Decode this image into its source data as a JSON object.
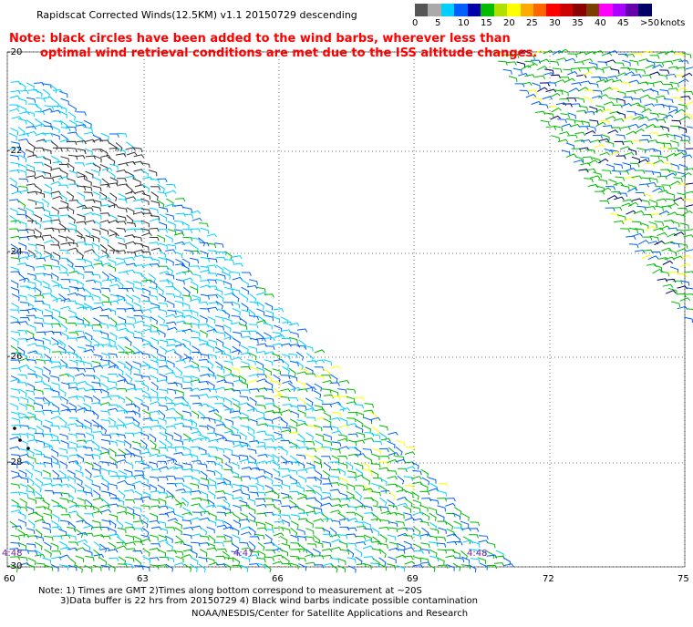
{
  "title": "Rapidscat Corrected Winds(12.5KM) v1.1 20150729 descending",
  "note_line1": "Note: black circles have been added to the wind barbs, wherever less than",
  "note_line2": "optimal wind retrieval conditions are met due to the ISS altitude changes.",
  "legend": {
    "unit": "knots",
    "labels": [
      "0",
      "5",
      "10",
      "15",
      "20",
      "25",
      "30",
      "35",
      "40",
      "45",
      ">50"
    ],
    "colors": [
      "#555555",
      "#aaaaaa",
      "#00cfff",
      "#0060ff",
      "#0000aa",
      "#00bb00",
      "#b0e000",
      "#ffff00",
      "#ffaa00",
      "#ff6600",
      "#ff0000",
      "#cc0000",
      "#8b0000",
      "#7a3f00",
      "#ff00ff",
      "#aa00ff",
      "#6600aa",
      "#000066"
    ]
  },
  "map": {
    "lat_labels": [
      "-20",
      "-22",
      "-24",
      "-26",
      "-28",
      "-30"
    ],
    "lon_labels": [
      "60",
      "63",
      "66",
      "69",
      "72",
      "75"
    ],
    "time_labels": [
      "4:48",
      "4:47",
      "4:48"
    ],
    "swaths": [
      {
        "name": "west-swath",
        "dominant": "cyan-blue"
      },
      {
        "name": "east-swath",
        "dominant": "green-blue"
      }
    ]
  },
  "footer": {
    "line1": "Note: 1) Times are GMT 2)Times along bottom correspond to measurement at ~20S",
    "line2": "3)Data buffer is 22 hrs from 20150729 4) Black wind barbs indicate possible contamination",
    "line3": "NOAA/NESDIS/Center for Satellite Applications and Research"
  }
}
